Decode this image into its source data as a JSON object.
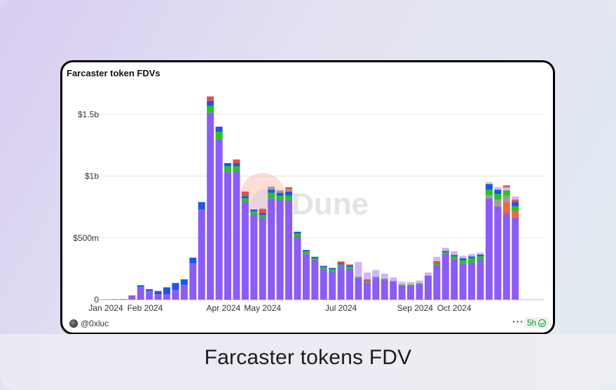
{
  "caption": "Farcaster tokens FDV",
  "card": {
    "title": "Farcaster token FDVs",
    "author": "@0xluc",
    "more_icon": "more-dots-icon",
    "refresh_badge": "5h",
    "watermark": "Dune"
  },
  "colors": {
    "base": "#8b5cf6",
    "light_purple": "#d4b3f8",
    "blue": "#1e56e8",
    "green": "#22c51d",
    "red": "#e34d4d",
    "gray": "#a39a92",
    "orange": "#ee6a3a",
    "teal": "#18a6a0"
  },
  "chart_data": {
    "type": "bar",
    "stacked": true,
    "title": "Farcaster token FDVs",
    "ylim": [
      0,
      1700000000
    ],
    "yticks": [
      {
        "value": 0,
        "label": "0"
      },
      {
        "value": 500000000,
        "label": "$500m"
      },
      {
        "value": 1000000000,
        "label": "$1b"
      },
      {
        "value": 1500000000,
        "label": "$1.5b"
      }
    ],
    "xticks": [
      {
        "index": 0,
        "label": "Jan 2024"
      },
      {
        "index": 4.5,
        "label": "Feb 2024"
      },
      {
        "index": 13.5,
        "label": "Apr 2024"
      },
      {
        "index": 18,
        "label": "May 2024"
      },
      {
        "index": 27,
        "label": "Jul 2024"
      },
      {
        "index": 35.5,
        "label": "Sep 2024"
      },
      {
        "index": 40,
        "label": "Oct 2024"
      }
    ],
    "grid": true,
    "legend": "none",
    "bars": [
      {
        "segments": [
          {
            "c": "base",
            "v": 3000000
          }
        ]
      },
      {
        "segments": [
          {
            "c": "base",
            "v": 4000000
          }
        ]
      },
      {
        "segments": [
          {
            "c": "base",
            "v": 5000000
          }
        ]
      },
      {
        "segments": [
          {
            "c": "base",
            "v": 35000000
          }
        ]
      },
      {
        "segments": [
          {
            "c": "base",
            "v": 105000000
          },
          {
            "c": "blue",
            "v": 12000000
          }
        ]
      },
      {
        "segments": [
          {
            "c": "base",
            "v": 70000000
          },
          {
            "c": "blue",
            "v": 15000000
          }
        ]
      },
      {
        "segments": [
          {
            "c": "base",
            "v": 45000000
          },
          {
            "c": "blue",
            "v": 25000000
          }
        ]
      },
      {
        "segments": [
          {
            "c": "base",
            "v": 45000000
          },
          {
            "c": "blue",
            "v": 55000000
          }
        ]
      },
      {
        "segments": [
          {
            "c": "base",
            "v": 80000000
          },
          {
            "c": "blue",
            "v": 55000000
          }
        ]
      },
      {
        "segments": [
          {
            "c": "base",
            "v": 120000000
          },
          {
            "c": "blue",
            "v": 45000000
          }
        ]
      },
      {
        "segments": [
          {
            "c": "base",
            "v": 295000000
          },
          {
            "c": "blue",
            "v": 45000000
          }
        ]
      },
      {
        "segments": [
          {
            "c": "base",
            "v": 730000000
          },
          {
            "c": "blue",
            "v": 60000000
          }
        ]
      },
      {
        "segments": [
          {
            "c": "base",
            "v": 1515000000
          },
          {
            "c": "green",
            "v": 55000000
          },
          {
            "c": "blue",
            "v": 40000000
          },
          {
            "c": "red",
            "v": 35000000
          }
        ]
      },
      {
        "segments": [
          {
            "c": "base",
            "v": 1300000000
          },
          {
            "c": "green",
            "v": 60000000
          },
          {
            "c": "blue",
            "v": 40000000
          }
        ]
      },
      {
        "segments": [
          {
            "c": "base",
            "v": 1035000000
          },
          {
            "c": "green",
            "v": 45000000
          },
          {
            "c": "blue",
            "v": 25000000
          }
        ]
      },
      {
        "segments": [
          {
            "c": "base",
            "v": 1040000000
          },
          {
            "c": "green",
            "v": 40000000
          },
          {
            "c": "blue",
            "v": 25000000
          },
          {
            "c": "red",
            "v": 30000000
          }
        ]
      },
      {
        "segments": [
          {
            "c": "base",
            "v": 790000000
          },
          {
            "c": "green",
            "v": 30000000
          },
          {
            "c": "blue",
            "v": 20000000
          },
          {
            "c": "red",
            "v": 35000000
          }
        ]
      },
      {
        "segments": [
          {
            "c": "base",
            "v": 690000000
          },
          {
            "c": "green",
            "v": 25000000
          },
          {
            "c": "blue",
            "v": 15000000
          }
        ]
      },
      {
        "segments": [
          {
            "c": "base",
            "v": 660000000
          },
          {
            "c": "green",
            "v": 25000000
          },
          {
            "c": "blue",
            "v": 15000000
          },
          {
            "c": "red",
            "v": 35000000
          }
        ]
      },
      {
        "segments": [
          {
            "c": "base",
            "v": 820000000
          },
          {
            "c": "green",
            "v": 45000000
          },
          {
            "c": "blue",
            "v": 25000000
          },
          {
            "c": "gray",
            "v": 25000000
          }
        ]
      },
      {
        "segments": [
          {
            "c": "base",
            "v": 810000000
          },
          {
            "c": "green",
            "v": 30000000
          },
          {
            "c": "blue",
            "v": 25000000
          },
          {
            "c": "gray",
            "v": 20000000
          }
        ]
      },
      {
        "segments": [
          {
            "c": "base",
            "v": 805000000
          },
          {
            "c": "green",
            "v": 35000000
          },
          {
            "c": "blue",
            "v": 35000000
          },
          {
            "c": "gray",
            "v": 20000000
          },
          {
            "c": "red",
            "v": 15000000
          }
        ]
      },
      {
        "segments": [
          {
            "c": "base",
            "v": 510000000
          },
          {
            "c": "green",
            "v": 25000000
          },
          {
            "c": "blue",
            "v": 15000000
          }
        ]
      },
      {
        "segments": [
          {
            "c": "base",
            "v": 370000000
          },
          {
            "c": "green",
            "v": 20000000
          },
          {
            "c": "blue",
            "v": 12000000
          }
        ]
      },
      {
        "segments": [
          {
            "c": "base",
            "v": 320000000
          },
          {
            "c": "green",
            "v": 15000000
          },
          {
            "c": "blue",
            "v": 12000000
          }
        ]
      },
      {
        "segments": [
          {
            "c": "base",
            "v": 250000000
          },
          {
            "c": "green",
            "v": 12000000
          },
          {
            "c": "blue",
            "v": 12000000
          }
        ]
      },
      {
        "segments": [
          {
            "c": "base",
            "v": 230000000
          },
          {
            "c": "green",
            "v": 15000000
          },
          {
            "c": "blue",
            "v": 12000000
          }
        ]
      },
      {
        "segments": [
          {
            "c": "base",
            "v": 270000000
          },
          {
            "c": "green",
            "v": 15000000
          },
          {
            "c": "blue",
            "v": 10000000
          },
          {
            "c": "red",
            "v": 15000000
          }
        ]
      },
      {
        "segments": [
          {
            "c": "base",
            "v": 250000000
          },
          {
            "c": "green",
            "v": 15000000
          },
          {
            "c": "blue",
            "v": 10000000
          },
          {
            "c": "red",
            "v": 10000000
          }
        ]
      },
      {
        "segments": [
          {
            "c": "base",
            "v": 175000000
          },
          {
            "c": "green",
            "v": 10000000
          },
          {
            "c": "light_purple",
            "v": 120000000
          }
        ]
      },
      {
        "segments": [
          {
            "c": "base",
            "v": 140000000
          },
          {
            "c": "green",
            "v": 10000000
          },
          {
            "c": "red",
            "v": 15000000
          },
          {
            "c": "light_purple",
            "v": 55000000
          }
        ]
      },
      {
        "segments": [
          {
            "c": "base",
            "v": 175000000
          },
          {
            "c": "green",
            "v": 10000000
          },
          {
            "c": "light_purple",
            "v": 55000000
          }
        ]
      },
      {
        "segments": [
          {
            "c": "base",
            "v": 160000000
          },
          {
            "c": "green",
            "v": 10000000
          },
          {
            "c": "light_purple",
            "v": 40000000
          }
        ]
      },
      {
        "segments": [
          {
            "c": "base",
            "v": 150000000
          },
          {
            "c": "light_purple",
            "v": 30000000
          }
        ]
      },
      {
        "segments": [
          {
            "c": "base",
            "v": 115000000
          },
          {
            "c": "green",
            "v": 8000000
          },
          {
            "c": "light_purple",
            "v": 22000000
          }
        ]
      },
      {
        "segments": [
          {
            "c": "base",
            "v": 115000000
          },
          {
            "c": "green",
            "v": 8000000
          },
          {
            "c": "light_purple",
            "v": 20000000
          }
        ]
      },
      {
        "segments": [
          {
            "c": "base",
            "v": 125000000
          },
          {
            "c": "green",
            "v": 8000000
          },
          {
            "c": "light_purple",
            "v": 22000000
          }
        ]
      },
      {
        "segments": [
          {
            "c": "base",
            "v": 195000000
          },
          {
            "c": "light_purple",
            "v": 25000000
          }
        ]
      },
      {
        "segments": [
          {
            "c": "base",
            "v": 280000000
          },
          {
            "c": "green",
            "v": 12000000
          },
          {
            "c": "red",
            "v": 20000000
          },
          {
            "c": "light_purple",
            "v": 35000000
          }
        ]
      },
      {
        "segments": [
          {
            "c": "base",
            "v": 370000000
          },
          {
            "c": "green",
            "v": 15000000
          },
          {
            "c": "blue",
            "v": 10000000
          },
          {
            "c": "light_purple",
            "v": 25000000
          }
        ]
      },
      {
        "segments": [
          {
            "c": "base",
            "v": 330000000
          },
          {
            "c": "green",
            "v": 20000000
          },
          {
            "c": "blue",
            "v": 12000000
          },
          {
            "c": "light_purple",
            "v": 30000000
          }
        ]
      },
      {
        "segments": [
          {
            "c": "base",
            "v": 290000000
          },
          {
            "c": "green",
            "v": 30000000
          },
          {
            "c": "blue",
            "v": 15000000
          },
          {
            "c": "light_purple",
            "v": 20000000
          }
        ]
      },
      {
        "segments": [
          {
            "c": "base",
            "v": 300000000
          },
          {
            "c": "green",
            "v": 35000000
          },
          {
            "c": "blue",
            "v": 15000000
          },
          {
            "c": "light_purple",
            "v": 20000000
          }
        ]
      },
      {
        "segments": [
          {
            "c": "base",
            "v": 320000000
          },
          {
            "c": "green",
            "v": 30000000
          },
          {
            "c": "blue",
            "v": 15000000
          },
          {
            "c": "light_purple",
            "v": 15000000
          }
        ]
      },
      {
        "segments": [
          {
            "c": "base",
            "v": 820000000
          },
          {
            "c": "gray",
            "v": 25000000
          },
          {
            "c": "green",
            "v": 45000000
          },
          {
            "c": "blue",
            "v": 45000000
          },
          {
            "c": "light_purple",
            "v": 15000000
          }
        ]
      },
      {
        "segments": [
          {
            "c": "base",
            "v": 755000000
          },
          {
            "c": "gray",
            "v": 55000000
          },
          {
            "c": "green",
            "v": 45000000
          },
          {
            "c": "blue",
            "v": 35000000
          },
          {
            "c": "light_purple",
            "v": 20000000
          }
        ]
      },
      {
        "segments": [
          {
            "c": "base",
            "v": 700000000
          },
          {
            "c": "orange",
            "v": 90000000
          },
          {
            "c": "gray",
            "v": 50000000
          },
          {
            "c": "green",
            "v": 45000000
          },
          {
            "c": "light_purple",
            "v": 25000000
          },
          {
            "c": "red",
            "v": 15000000
          }
        ]
      },
      {
        "segments": [
          {
            "c": "base",
            "v": 665000000
          },
          {
            "c": "orange",
            "v": 55000000
          },
          {
            "c": "green",
            "v": 35000000
          },
          {
            "c": "blue",
            "v": 35000000
          },
          {
            "c": "red",
            "v": 20000000
          },
          {
            "c": "light_purple",
            "v": 25000000
          }
        ]
      }
    ]
  }
}
